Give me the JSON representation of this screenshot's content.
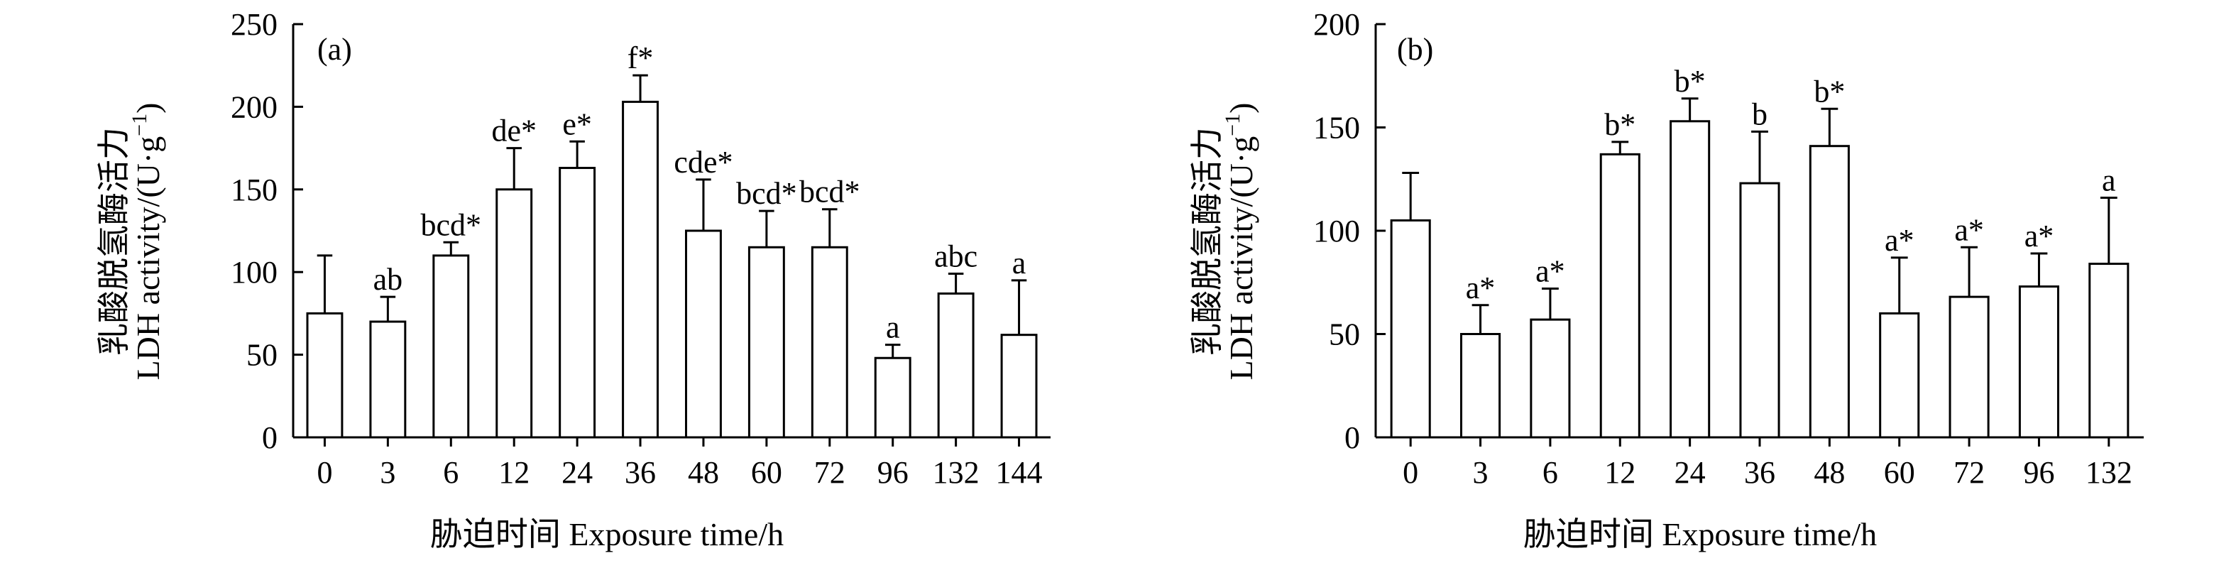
{
  "chart_data": [
    {
      "type": "bar",
      "panel_label": "(a)",
      "ylabel_cn": "乳酸脱氢酶活力",
      "ylabel_en": "LDH activity/(U·g",
      "ylabel_sup": "−1",
      "ylabel_close": ")",
      "xlabel": "胁迫时间 Exposure time/h",
      "ylim": [
        0,
        250
      ],
      "yticks": [
        0,
        50,
        100,
        150,
        200,
        250
      ],
      "categories": [
        "0",
        "3",
        "6",
        "12",
        "24",
        "36",
        "48",
        "60",
        "72",
        "96",
        "132",
        "144"
      ],
      "values": [
        75,
        70,
        110,
        150,
        163,
        203,
        125,
        115,
        115,
        48,
        87,
        62
      ],
      "errors": [
        35,
        15,
        8,
        25,
        16,
        16,
        31,
        22,
        23,
        8,
        12,
        33
      ],
      "labels": [
        "",
        "ab",
        "bcd*",
        "de*",
        "e*",
        "f*",
        "cde*",
        "bcd*",
        "bcd*",
        "a",
        "abc",
        "a"
      ]
    },
    {
      "type": "bar",
      "panel_label": "(b)",
      "ylabel_cn": "乳酸脱氢酶活力",
      "ylabel_en": "LDH activity/(U·g",
      "ylabel_sup": "−1",
      "ylabel_close": ")",
      "xlabel": "胁迫时间 Exposure time/h",
      "ylim": [
        0,
        200
      ],
      "yticks": [
        0,
        50,
        100,
        150,
        200
      ],
      "categories": [
        "0",
        "3",
        "6",
        "12",
        "24",
        "36",
        "48",
        "60",
        "72",
        "96",
        "132"
      ],
      "values": [
        105,
        50,
        57,
        137,
        153,
        123,
        141,
        60,
        68,
        73,
        84
      ],
      "errors": [
        23,
        14,
        15,
        6,
        11,
        25,
        18,
        27,
        24,
        16,
        32
      ],
      "labels": [
        "",
        "a*",
        "a*",
        "b*",
        "b*",
        "b",
        "b*",
        "a*",
        "a*",
        "a*",
        "a"
      ]
    }
  ]
}
